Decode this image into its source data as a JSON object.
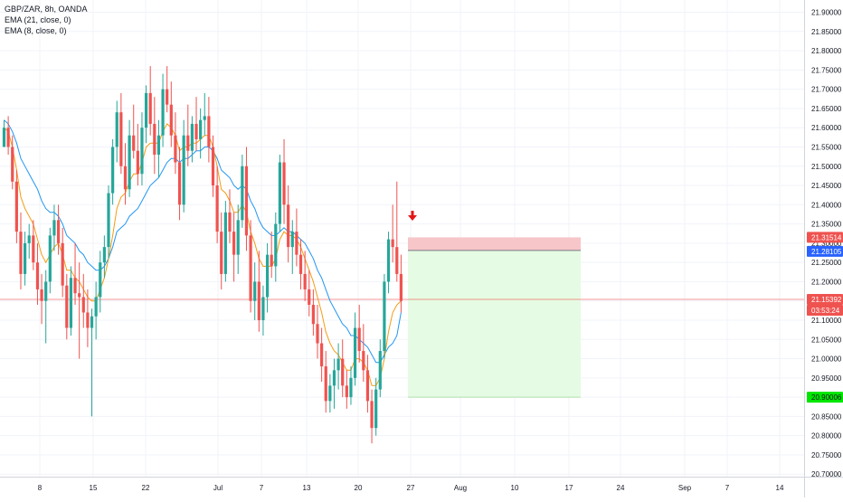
{
  "legend": {
    "symbol": "GBP/ZAR, 8h, OANDA",
    "ema21": "EMA (21, close, 0)",
    "ema8": "EMA (8, close, 0)"
  },
  "chart_data": {
    "type": "candlestick",
    "symbol": "GBP/ZAR",
    "interval": "8h",
    "source": "OANDA",
    "ylim": [
      20.67,
      21.92
    ],
    "yticks": [
      21.9,
      21.85,
      21.8,
      21.75,
      21.7,
      21.65,
      21.6,
      21.55,
      21.5,
      21.45,
      21.4,
      21.35,
      21.3,
      21.25,
      21.2,
      21.15,
      21.1,
      21.05,
      21.0,
      20.95,
      20.9,
      20.85,
      20.8,
      20.75,
      20.7
    ],
    "ytick_labels": [
      "21.90000",
      "21.85000",
      "21.80000",
      "21.75000",
      "21.70000",
      "21.65000",
      "21.60000",
      "21.55000",
      "21.50000",
      "21.45000",
      "21.40000",
      "21.35000",
      "21.30000",
      "21.25000",
      "21.20000",
      "21.15000",
      "21.10000",
      "21.05000",
      "21.00000",
      "20.95000",
      "20.90000",
      "20.85000",
      "20.80000",
      "20.75000",
      "20.70000"
    ],
    "xtick_labels": [
      "8",
      "15",
      "22",
      "Jul",
      "7",
      "13",
      "20",
      "27",
      "Aug",
      "10",
      "17",
      "24",
      "Sep",
      "7",
      "14"
    ],
    "candles": [
      [
        21.55,
        21.62,
        21.56,
        21.6
      ],
      [
        21.6,
        21.63,
        21.53,
        21.55
      ],
      [
        21.55,
        21.58,
        21.44,
        21.46
      ],
      [
        21.46,
        21.49,
        21.3,
        21.33
      ],
      [
        21.33,
        21.38,
        21.18,
        21.22
      ],
      [
        21.22,
        21.33,
        21.19,
        21.3
      ],
      [
        21.3,
        21.35,
        21.26,
        21.32
      ],
      [
        21.32,
        21.36,
        21.23,
        21.25
      ],
      [
        21.25,
        21.3,
        21.14,
        21.18
      ],
      [
        21.18,
        21.22,
        21.09,
        21.15
      ],
      [
        21.15,
        21.23,
        21.04,
        21.2
      ],
      [
        21.2,
        21.34,
        21.17,
        21.32
      ],
      [
        21.32,
        21.4,
        21.28,
        21.36
      ],
      [
        21.36,
        21.4,
        21.27,
        21.3
      ],
      [
        21.3,
        21.34,
        21.16,
        21.19
      ],
      [
        21.19,
        21.22,
        21.05,
        21.08
      ],
      [
        21.08,
        21.24,
        21.06,
        21.21
      ],
      [
        21.21,
        21.3,
        21.14,
        21.17
      ],
      [
        21.17,
        21.25,
        21.0,
        21.16
      ],
      [
        21.16,
        21.22,
        21.08,
        21.12
      ],
      [
        21.12,
        21.18,
        21.03,
        21.08
      ],
      [
        21.08,
        21.13,
        20.85,
        21.11
      ],
      [
        21.11,
        21.2,
        21.05,
        21.16
      ],
      [
        21.16,
        21.28,
        21.12,
        21.25
      ],
      [
        21.25,
        21.32,
        21.21,
        21.29
      ],
      [
        21.29,
        21.45,
        21.26,
        21.43
      ],
      [
        21.43,
        21.57,
        21.4,
        21.55
      ],
      [
        21.55,
        21.67,
        21.51,
        21.64
      ],
      [
        21.64,
        21.69,
        21.48,
        21.5
      ],
      [
        21.5,
        21.56,
        21.4,
        21.44
      ],
      [
        21.44,
        21.62,
        21.42,
        21.58
      ],
      [
        21.58,
        21.66,
        21.52,
        21.54
      ],
      [
        21.54,
        21.61,
        21.45,
        21.48
      ],
      [
        21.48,
        21.64,
        21.45,
        21.6
      ],
      [
        21.6,
        21.71,
        21.56,
        21.69
      ],
      [
        21.69,
        21.76,
        21.58,
        21.61
      ],
      [
        21.61,
        21.68,
        21.48,
        21.53
      ],
      [
        21.53,
        21.62,
        21.47,
        21.58
      ],
      [
        21.58,
        21.74,
        21.55,
        21.7
      ],
      [
        21.7,
        21.76,
        21.64,
        21.66
      ],
      [
        21.66,
        21.72,
        21.55,
        21.58
      ],
      [
        21.58,
        21.64,
        21.48,
        21.51
      ],
      [
        21.51,
        21.55,
        21.36,
        21.4
      ],
      [
        21.4,
        21.62,
        21.38,
        21.58
      ],
      [
        21.58,
        21.66,
        21.5,
        21.54
      ],
      [
        21.54,
        21.63,
        21.51,
        21.61
      ],
      [
        21.61,
        21.68,
        21.54,
        21.57
      ],
      [
        21.57,
        21.65,
        21.52,
        21.62
      ],
      [
        21.62,
        21.69,
        21.58,
        21.63
      ],
      [
        21.63,
        21.68,
        21.51,
        21.55
      ],
      [
        21.55,
        21.58,
        21.42,
        21.45
      ],
      [
        21.45,
        21.5,
        21.3,
        21.33
      ],
      [
        21.33,
        21.38,
        21.18,
        21.22
      ],
      [
        21.22,
        21.41,
        21.2,
        21.38
      ],
      [
        21.38,
        21.44,
        21.3,
        21.33
      ],
      [
        21.33,
        21.38,
        21.2,
        21.27
      ],
      [
        21.27,
        21.4,
        21.22,
        21.36
      ],
      [
        21.36,
        21.53,
        21.34,
        21.5
      ],
      [
        21.5,
        21.55,
        21.28,
        21.32
      ],
      [
        21.32,
        21.36,
        21.12,
        21.15
      ],
      [
        21.15,
        21.25,
        21.1,
        21.2
      ],
      [
        21.2,
        21.28,
        21.07,
        21.1
      ],
      [
        21.1,
        21.19,
        21.06,
        21.16
      ],
      [
        21.16,
        21.3,
        21.12,
        21.27
      ],
      [
        21.27,
        21.33,
        21.21,
        21.24
      ],
      [
        21.24,
        21.38,
        21.2,
        21.35
      ],
      [
        21.35,
        21.53,
        21.33,
        21.51
      ],
      [
        21.51,
        21.57,
        21.35,
        21.4
      ],
      [
        21.4,
        21.45,
        21.25,
        21.29
      ],
      [
        21.29,
        21.36,
        21.22,
        21.33
      ],
      [
        21.33,
        21.39,
        21.24,
        21.27
      ],
      [
        21.27,
        21.31,
        21.18,
        21.22
      ],
      [
        21.22,
        21.28,
        21.15,
        21.18
      ],
      [
        21.18,
        21.23,
        21.11,
        21.14
      ],
      [
        21.14,
        21.18,
        21.06,
        21.09
      ],
      [
        21.09,
        21.14,
        21.0,
        21.04
      ],
      [
        21.04,
        21.08,
        20.94,
        20.98
      ],
      [
        20.98,
        21.02,
        20.86,
        20.89
      ],
      [
        20.89,
        20.96,
        20.86,
        20.93
      ],
      [
        20.93,
        21.0,
        20.87,
        20.97
      ],
      [
        20.97,
        21.04,
        20.92,
        21.0
      ],
      [
        21.0,
        21.05,
        20.9,
        20.93
      ],
      [
        20.93,
        20.97,
        20.87,
        20.9
      ],
      [
        20.9,
        20.98,
        20.88,
        20.95
      ],
      [
        20.95,
        21.12,
        20.93,
        21.08
      ],
      [
        21.08,
        21.14,
        20.99,
        21.02
      ],
      [
        21.02,
        21.09,
        20.94,
        20.97
      ],
      [
        20.97,
        21.01,
        20.86,
        20.89
      ],
      [
        20.89,
        20.92,
        20.78,
        20.82
      ],
      [
        20.82,
        20.95,
        20.8,
        20.92
      ],
      [
        20.92,
        21.05,
        20.9,
        21.02
      ],
      [
        21.02,
        21.22,
        21.0,
        21.2
      ],
      [
        21.2,
        21.33,
        21.17,
        21.31
      ],
      [
        21.31,
        21.4,
        21.25,
        21.29
      ],
      [
        21.29,
        21.46,
        21.2,
        21.22
      ],
      [
        21.22,
        21.27,
        21.12,
        21.15
      ]
    ],
    "ema21": [
      21.62,
      21.61,
      21.59,
      21.56,
      21.52,
      21.5,
      21.48,
      21.46,
      21.44,
      21.41,
      21.39,
      21.38,
      21.38,
      21.37,
      21.35,
      21.32,
      21.31,
      21.3,
      21.28,
      21.27,
      21.25,
      21.24,
      21.23,
      21.23,
      21.24,
      21.26,
      21.29,
      21.33,
      21.34,
      21.35,
      21.37,
      21.38,
      21.39,
      21.41,
      21.43,
      21.45,
      21.46,
      21.47,
      21.49,
      21.51,
      21.52,
      21.52,
      21.51,
      21.52,
      21.52,
      21.53,
      21.54,
      21.54,
      21.55,
      21.55,
      21.54,
      21.52,
      21.49,
      21.48,
      21.47,
      21.45,
      21.44,
      21.45,
      21.44,
      21.41,
      21.39,
      21.36,
      21.34,
      21.33,
      21.32,
      21.32,
      21.33,
      21.34,
      21.33,
      21.33,
      21.32,
      21.31,
      21.3,
      21.28,
      21.26,
      21.23,
      21.21,
      21.18,
      21.15,
      21.13,
      21.11,
      21.09,
      21.08,
      21.06,
      21.06,
      21.05,
      21.04,
      21.03,
      21.01,
      20.99,
      20.99,
      21.01,
      21.03,
      21.04,
      21.06,
      21.12
    ],
    "ema8": [
      21.6,
      21.59,
      21.55,
      21.49,
      21.42,
      21.39,
      21.37,
      21.35,
      21.31,
      21.27,
      21.25,
      21.27,
      21.29,
      21.3,
      21.27,
      21.23,
      21.23,
      21.21,
      21.2,
      21.18,
      21.16,
      21.15,
      21.15,
      21.18,
      21.21,
      21.26,
      21.32,
      21.39,
      21.42,
      21.43,
      21.46,
      21.48,
      21.48,
      21.51,
      21.55,
      21.56,
      21.56,
      21.56,
      21.59,
      21.61,
      21.6,
      21.58,
      21.54,
      21.55,
      21.55,
      21.56,
      21.56,
      21.57,
      21.58,
      21.58,
      21.55,
      21.5,
      21.44,
      21.43,
      21.41,
      21.38,
      21.38,
      21.4,
      21.38,
      21.33,
      21.3,
      21.26,
      21.24,
      21.24,
      21.24,
      21.26,
      21.31,
      21.33,
      21.32,
      21.32,
      21.31,
      21.29,
      21.26,
      21.23,
      21.2,
      21.16,
      21.12,
      21.07,
      21.04,
      21.02,
      21.01,
      20.99,
      20.97,
      20.97,
      21.0,
      21.0,
      20.99,
      20.97,
      20.93,
      20.93,
      20.95,
      21.0,
      21.07,
      21.12,
      21.14,
      21.15
    ],
    "position": {
      "type": "short",
      "stop_price": 21.31514,
      "entry_price": 21.28105,
      "target_price": 20.90006,
      "stop_label": "21.31514",
      "entry_label": "21.28105",
      "target_label": "20.90006"
    },
    "last_price": 21.15392,
    "last_price_label": "21.15392",
    "countdown_label": "03:53:24",
    "colors": {
      "up": "#26a69a",
      "down": "#ef5350",
      "ema21": "#2196f3",
      "ema8": "#f39c12",
      "stop_zone": "#f7c6c9",
      "target_zone": "#e5fbe3",
      "last_price": "#ef5350",
      "entry_badge": "#2962ff",
      "target_badge": "#00e600",
      "signal_arrow": "#e51616"
    },
    "signal_arrow": "down",
    "grid": true
  }
}
